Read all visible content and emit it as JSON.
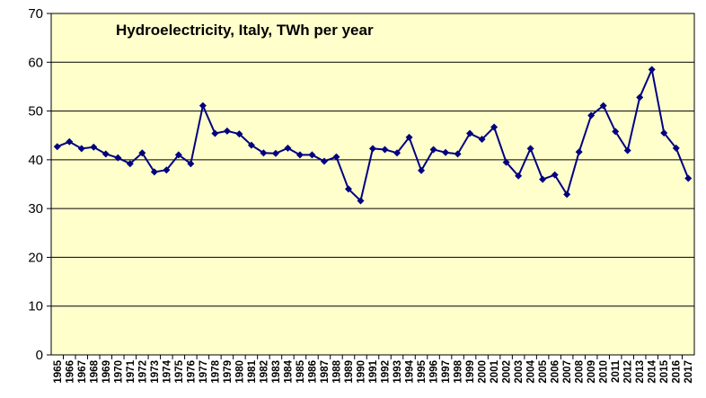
{
  "chart_data": {
    "type": "line",
    "title": "Hydroelectricity, Italy, TWh per year",
    "xlabel": "",
    "ylabel": "",
    "ylim": [
      0,
      70
    ],
    "yticks": [
      0,
      10,
      20,
      30,
      40,
      50,
      60,
      70
    ],
    "grid": true,
    "legend": "none",
    "colors": {
      "plot_background": "#ffffcc",
      "line": "#000080",
      "grid": "#000000"
    },
    "x": [
      "1965",
      "1966",
      "1967",
      "1968",
      "1969",
      "1970",
      "1971",
      "1972",
      "1973",
      "1974",
      "1975",
      "1976",
      "1977",
      "1978",
      "1979",
      "1980",
      "1981",
      "1982",
      "1983",
      "1984",
      "1985",
      "1986",
      "1987",
      "1988",
      "1989",
      "1990",
      "1991",
      "1992",
      "1993",
      "1994",
      "1995",
      "1996",
      "1997",
      "1998",
      "1999",
      "2000",
      "2001",
      "2002",
      "2003",
      "2004",
      "2005",
      "2006",
      "2007",
      "2008",
      "2009",
      "2010",
      "2011",
      "2012",
      "2013",
      "2014",
      "2015",
      "2016",
      "2017"
    ],
    "series": [
      {
        "name": "",
        "values": [
          42.7,
          43.7,
          42.3,
          42.6,
          41.2,
          40.4,
          39.2,
          41.4,
          37.5,
          37.9,
          41.0,
          39.2,
          51.1,
          45.4,
          45.9,
          45.3,
          43.0,
          41.4,
          41.3,
          42.4,
          41.0,
          41.0,
          39.7,
          40.6,
          34.0,
          31.6,
          42.3,
          42.1,
          41.4,
          44.6,
          37.8,
          42.1,
          41.5,
          41.2,
          45.4,
          44.2,
          46.7,
          39.5,
          36.7,
          42.3,
          36.0,
          36.9,
          32.9,
          41.6,
          49.1,
          51.1,
          45.8,
          41.9,
          52.8,
          58.5,
          45.5,
          42.4,
          36.2
        ]
      }
    ]
  }
}
